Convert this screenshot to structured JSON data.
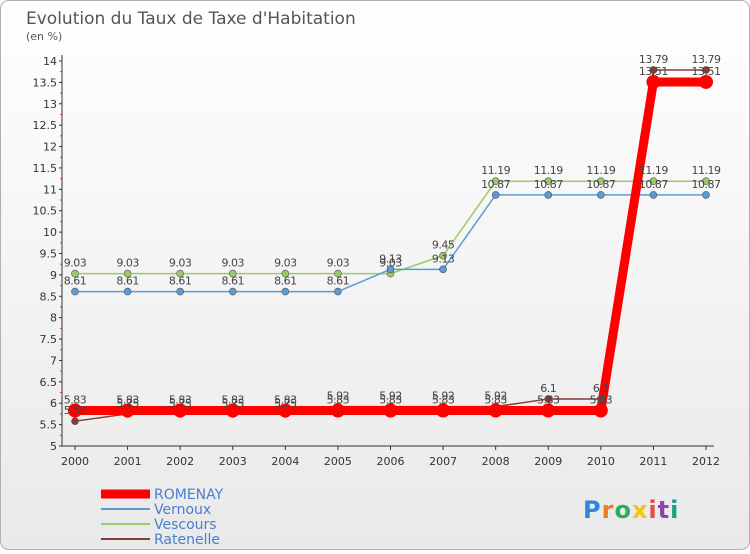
{
  "chart_data": {
    "type": "line",
    "title": "Evolution du Taux de Taxe d'Habitation",
    "subtitle": "(en %)",
    "x": [
      "2000",
      "2001",
      "2002",
      "2003",
      "2004",
      "2005",
      "2006",
      "2007",
      "2008",
      "2009",
      "2010",
      "2011",
      "2012"
    ],
    "ylim": [
      5,
      14
    ],
    "yticks": [
      "5",
      "5.5",
      "6",
      "6.5",
      "7",
      "7.5",
      "8",
      "8.5",
      "9",
      "9.5",
      "10",
      "10.5",
      "11",
      "11.5",
      "12",
      "12.5",
      "13",
      "13.5",
      "14"
    ],
    "grid": false,
    "legend_position": "bottom-left",
    "series": [
      {
        "name": "ROMENAY",
        "color": "#ff0000",
        "values": [
          5.83,
          5.83,
          5.83,
          5.83,
          5.83,
          5.83,
          5.83,
          5.83,
          5.83,
          5.83,
          5.83,
          13.51,
          13.51
        ],
        "labels": [
          "5.83",
          "5.83",
          "5.83",
          "5.83",
          "5.83",
          "5.83",
          "5.83",
          "5.83",
          "5.83",
          "5.83",
          "5.83",
          "13.51",
          "13.51"
        ]
      },
      {
        "name": "Vernoux",
        "color": "#5b9bd5",
        "values": [
          8.61,
          8.61,
          8.61,
          8.61,
          8.61,
          8.61,
          9.13,
          9.13,
          10.87,
          10.87,
          10.87,
          10.87,
          10.87
        ],
        "labels": [
          "8.61",
          "8.61",
          "8.61",
          "8.61",
          "8.61",
          "8.61",
          "9.13",
          "9.13",
          "10.87",
          "10.87",
          "10.87",
          "10.87",
          "10.87"
        ]
      },
      {
        "name": "Vescours",
        "color": "#99cc66",
        "values": [
          9.03,
          9.03,
          9.03,
          9.03,
          9.03,
          9.03,
          9.03,
          9.45,
          11.19,
          11.19,
          11.19,
          11.19,
          11.19
        ],
        "labels": [
          "9.03",
          "9.03",
          "9.03",
          "9.03",
          "9.03",
          "9.03",
          "9.03",
          "9.45",
          "11.19",
          "11.19",
          "11.19",
          "11.19",
          "11.19"
        ]
      },
      {
        "name": "Ratenelle",
        "color": "#8b3a3a",
        "values": [
          5.58,
          5.75,
          5.75,
          5.75,
          5.75,
          5.92,
          5.92,
          5.92,
          5.92,
          6.1,
          6.1,
          13.79,
          13.79
        ],
        "labels": [
          "5.58",
          "5.75",
          "5.75",
          "5.75",
          "5.75",
          "5.92",
          "5.92",
          "5.92",
          "5.92",
          "6.1",
          "6.1",
          "13.79",
          "13.79"
        ]
      }
    ]
  },
  "brand": {
    "text": "Proxiti"
  }
}
